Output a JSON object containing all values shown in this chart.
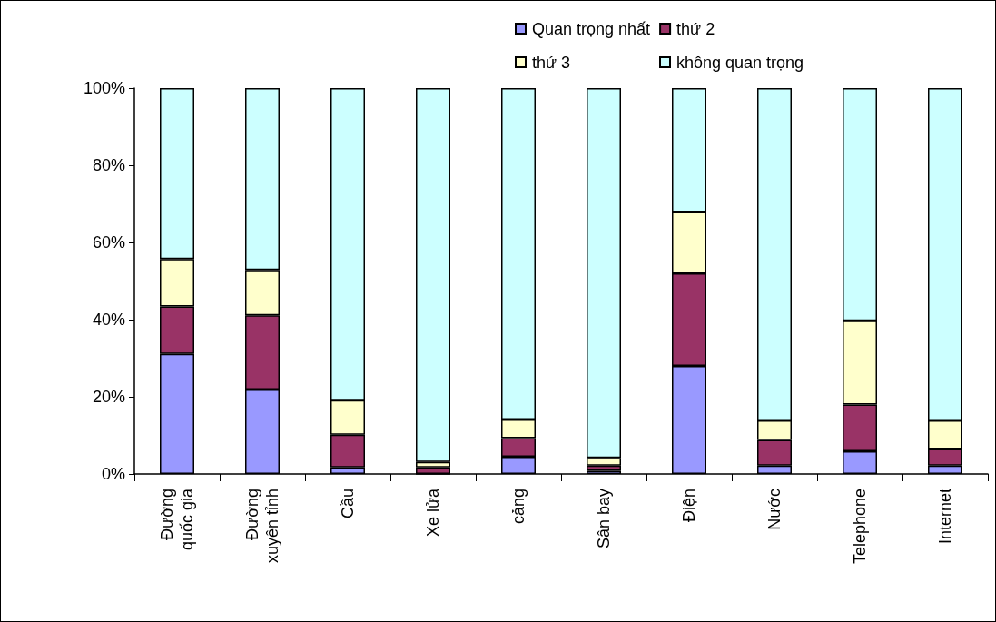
{
  "chart_data": {
    "type": "bar",
    "stacked": true,
    "legend": "top",
    "grid": false,
    "categories": [
      "Đường quốc gia",
      "Đường xuyên tỉnh",
      "Cầu",
      "Xe lửa",
      "cảng",
      "Sân bay",
      "Điện",
      "Nước",
      "Telephone",
      "Internet"
    ],
    "series": [
      {
        "name": "Quan trọng nhất",
        "color": "#9999ff",
        "values": [
          31.1,
          21.9,
          1.7,
          0,
          4.5,
          0.8,
          28.0,
          2.2,
          5.9,
          2.2
        ]
      },
      {
        "name": "thứ 2",
        "color": "#993366",
        "values": [
          12.3,
          19.2,
          8.5,
          1.7,
          4.8,
          1.4,
          24.0,
          6.6,
          12.1,
          4.3
        ]
      },
      {
        "name": "thứ 3",
        "color": "#ffffcc",
        "values": [
          12.3,
          11.8,
          8.9,
          1.4,
          4.8,
          2.0,
          15.9,
          5.1,
          21.7,
          7.4
        ]
      },
      {
        "name": "không quan trọng",
        "color": "#ccffff",
        "values": [
          44.3,
          47.1,
          80.9,
          96.9,
          85.9,
          95.8,
          32.1,
          86.1,
          60.3,
          86.1
        ]
      }
    ],
    "ylim": [
      0,
      100
    ],
    "yticks": [
      {
        "value": 0,
        "label": "0%"
      },
      {
        "value": 20,
        "label": "20%"
      },
      {
        "value": 40,
        "label": "40%"
      },
      {
        "value": 60,
        "label": "60%"
      },
      {
        "value": 80,
        "label": "80%"
      },
      {
        "value": 100,
        "label": "100%"
      }
    ]
  }
}
